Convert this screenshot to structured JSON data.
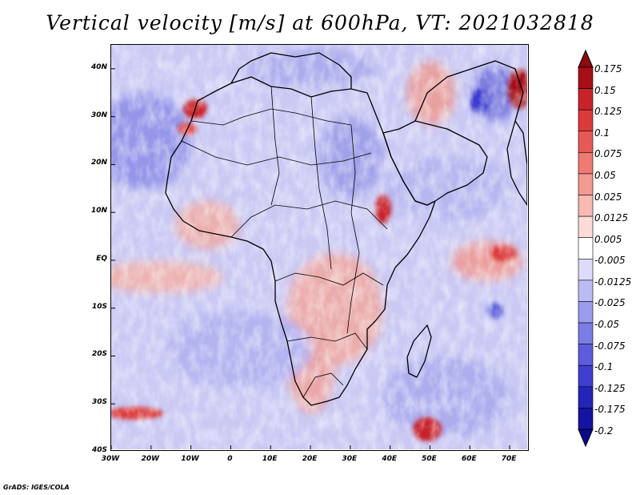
{
  "title": "Vertical velocity [m/s] at 600hPa, VT: 2021032818",
  "credit": "GrADS: IGES/COLA",
  "map": {
    "region": "Africa",
    "lat_labels": [
      "40N",
      "30N",
      "20N",
      "10N",
      "EQ",
      "10S",
      "20S",
      "30S",
      "40S"
    ],
    "lat_values": [
      40,
      30,
      20,
      10,
      0,
      -10,
      -20,
      -30,
      -40
    ],
    "lon_labels": [
      "30W",
      "20W",
      "10W",
      "0",
      "10E",
      "20E",
      "30E",
      "40E",
      "50E",
      "60E",
      "70E"
    ],
    "lon_values": [
      -30,
      -20,
      -10,
      0,
      10,
      20,
      30,
      40,
      50,
      60,
      70
    ],
    "lat_range": [
      -40,
      45
    ],
    "lon_range": [
      -30,
      75
    ]
  },
  "colorbar": {
    "labels": [
      "0.175",
      "0.15",
      "0.125",
      "0.1",
      "0.075",
      "0.05",
      "0.025",
      "0.0125",
      "0.005",
      "-0.005",
      "-0.0125",
      "-0.025",
      "-0.05",
      "-0.075",
      "-0.1",
      "-0.125",
      "-0.175",
      "-0.2"
    ],
    "colors": [
      "#a50f15",
      "#c8232b",
      "#db3a3a",
      "#e65a55",
      "#ef7a72",
      "#f39a92",
      "#f8bab2",
      "#fcdcd6",
      "#ffffff",
      "#dcdcfa",
      "#bcbcf4",
      "#9c9cee",
      "#7c7ce6",
      "#5c5cdc",
      "#3e3ed0",
      "#2424b8",
      "#1414a0"
    ],
    "top_cap_color": "#8c0a10",
    "bottom_cap_color": "#0a0a8c"
  }
}
